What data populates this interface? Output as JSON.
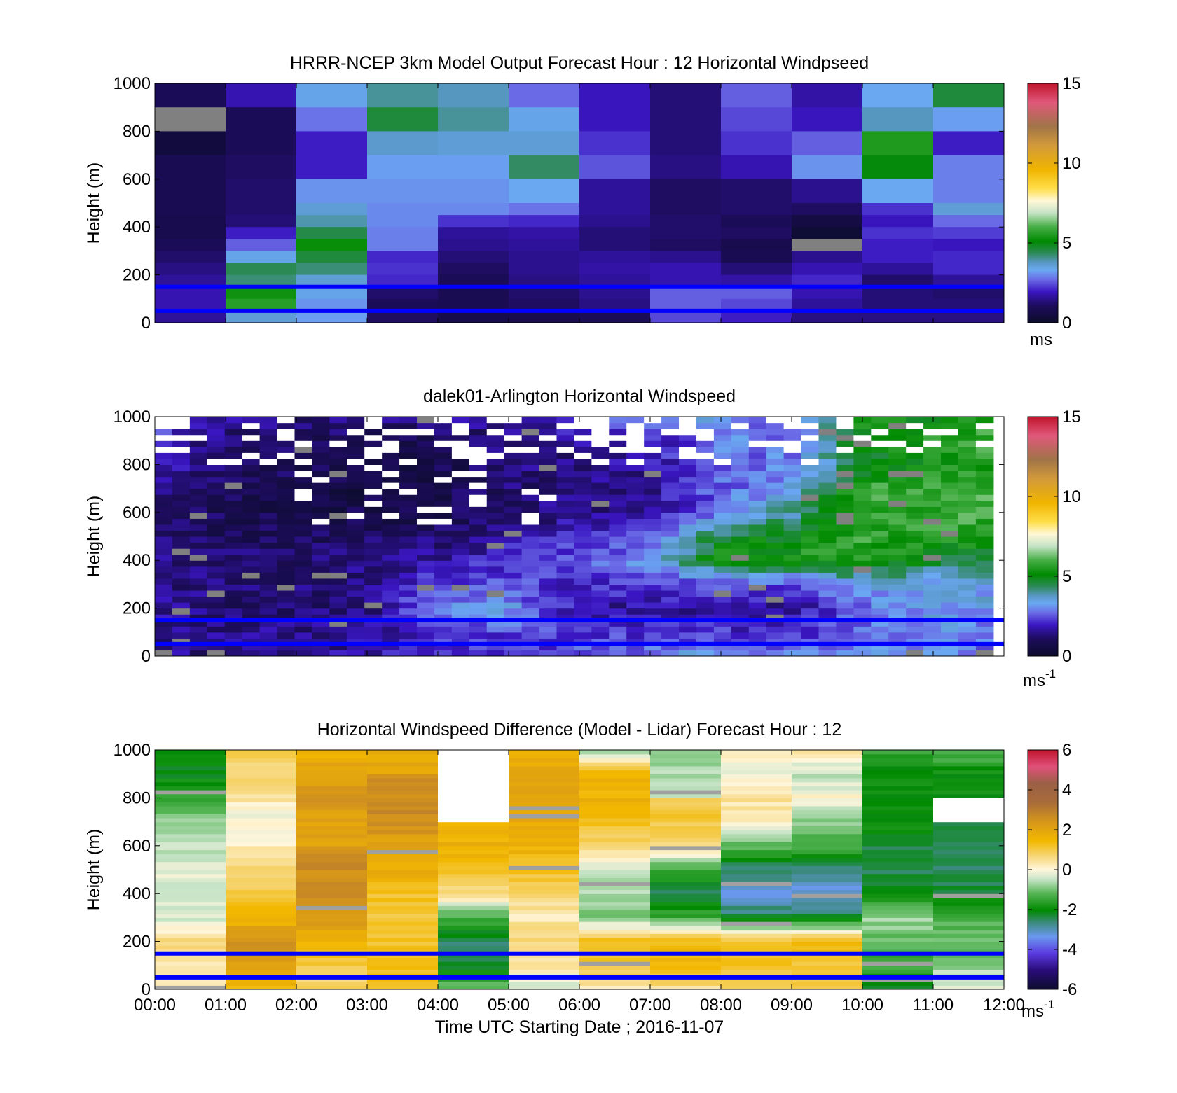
{
  "chart_data": [
    {
      "type": "heatmap",
      "title": "HRRR-NCEP 3km Model Output   Forecast Hour : 12 Horizontal Windpseed",
      "ylabel": "Height (m)",
      "xlabel": "",
      "ylim": [
        0,
        1000
      ],
      "yticks": [
        "0",
        "200",
        "400",
        "600",
        "800",
        "1000"
      ],
      "xlim_hours": [
        0,
        12
      ],
      "colorbar": {
        "min": 0,
        "max": 15,
        "ticks": [
          "0",
          "5",
          "10",
          "15"
        ],
        "unit": "ms",
        "unit_sup": ""
      },
      "reference_lines_m": [
        150,
        50
      ],
      "reference_line_color": "#0000ff",
      "rows_m": [
        1000,
        900,
        800,
        700,
        600,
        500,
        450,
        400,
        350,
        300,
        250,
        200,
        150,
        100,
        50,
        0
      ],
      "values": [
        [
          1.0,
          1.8,
          3.4,
          4.0,
          3.8,
          2.7,
          1.9,
          1.3,
          2.6,
          1.7,
          3.3,
          4.6
        ],
        [
          0.2,
          1.0,
          2.8,
          4.6,
          4.0,
          3.4,
          1.9,
          1.3,
          2.4,
          1.9,
          3.8,
          3.2
        ],
        [
          0.4,
          1.0,
          2.0,
          3.7,
          3.6,
          3.6,
          2.2,
          1.3,
          2.2,
          2.6,
          5.5,
          2.0
        ],
        [
          0.9,
          1.1,
          2.0,
          3.2,
          3.2,
          4.3,
          2.5,
          1.4,
          1.8,
          3.1,
          5.0,
          2.9
        ],
        [
          0.9,
          1.2,
          3.1,
          3.1,
          3.1,
          3.3,
          1.6,
          1.1,
          1.2,
          1.5,
          3.3,
          2.9
        ],
        [
          0.9,
          1.2,
          3.6,
          3.0,
          3.0,
          2.8,
          1.6,
          1.1,
          1.2,
          1.1,
          2.2,
          3.6
        ],
        [
          0.8,
          1.3,
          3.9,
          3.0,
          2.2,
          2.1,
          1.5,
          1.2,
          1.0,
          0.5,
          1.9,
          2.7
        ],
        [
          0.8,
          2.0,
          4.5,
          2.9,
          1.6,
          1.7,
          1.3,
          1.2,
          1.1,
          0.2,
          2.2,
          2.3
        ],
        [
          1.0,
          2.6,
          5.2,
          2.9,
          1.5,
          1.6,
          1.3,
          1.1,
          0.8,
          1.1,
          2.0,
          1.9
        ],
        [
          1.2,
          3.4,
          4.6,
          2.1,
          1.3,
          1.5,
          1.6,
          1.5,
          0.9,
          1.5,
          2.0,
          2.1
        ],
        [
          1.4,
          4.4,
          4.2,
          2.2,
          1.1,
          1.5,
          1.7,
          1.8,
          1.3,
          1.8,
          1.6,
          2.1
        ],
        [
          1.6,
          4.2,
          3.6,
          2.1,
          1.0,
          1.4,
          1.6,
          1.8,
          1.7,
          2.1,
          1.2,
          1.6
        ],
        [
          1.8,
          5.3,
          3.4,
          1.2,
          0.9,
          1.2,
          1.5,
          2.6,
          2.6,
          1.8,
          1.3,
          1.2
        ],
        [
          1.8,
          5.6,
          3.1,
          1.0,
          0.9,
          1.1,
          1.4,
          2.6,
          2.4,
          1.6,
          1.3,
          1.3
        ],
        [
          1.6,
          3.6,
          3.2,
          1.1,
          0.7,
          0.8,
          1.0,
          2.4,
          2.0,
          1.4,
          1.4,
          1.4
        ],
        [
          1.4,
          3.6,
          3.2,
          1.1,
          0.7,
          0.8,
          1.0,
          2.4,
          2.0,
          1.4,
          1.4,
          1.4
        ]
      ],
      "missing_cells": [
        [
          1,
          0
        ],
        [
          8,
          9
        ]
      ]
    },
    {
      "type": "heatmap",
      "title": "dalek01-Arlington  Horizontal Windspeed",
      "ylabel": "Height (m)",
      "xlabel": "",
      "ylim": [
        0,
        1000
      ],
      "yticks": [
        "0",
        "200",
        "400",
        "600",
        "800",
        "1000"
      ],
      "xlim_hours": [
        0,
        12
      ],
      "colorbar": {
        "min": 0,
        "max": 15,
        "ticks": [
          "0",
          "5",
          "10",
          "15"
        ],
        "unit": "ms",
        "unit_sup": "-1"
      },
      "reference_lines_m": [
        150,
        50
      ],
      "reference_line_color": "#0000ff",
      "rows_m": [
        0,
        100,
        200,
        300,
        400,
        500,
        600,
        700,
        800,
        900,
        1000
      ],
      "profile_hours": [
        0,
        1,
        2,
        3,
        4,
        5,
        6,
        7,
        8,
        9,
        10,
        11,
        12
      ],
      "profiles": [
        [
          1.5,
          1.6,
          1.6,
          1.5,
          1.4,
          1.3,
          1.1,
          1.3,
          1.8,
          2.2,
          3.0
        ],
        [
          1.4,
          1.5,
          1.2,
          1.2,
          1.2,
          1.0,
          0.9,
          0.9,
          1.3,
          1.2,
          1.6
        ],
        [
          1.5,
          1.5,
          1.2,
          1.2,
          1.2,
          1.0,
          0.8,
          0.8,
          0.9,
          1.0,
          1.3
        ],
        [
          1.7,
          1.6,
          1.3,
          1.5,
          1.4,
          1.1,
          0.7,
          0.6,
          0.6,
          0.8,
          1.4
        ],
        [
          1.9,
          2.3,
          2.9,
          2.4,
          1.6,
          1.2,
          0.8,
          0.7,
          0.7,
          0.9,
          1.4
        ],
        [
          2.0,
          2.4,
          3.2,
          2.6,
          2.2,
          1.7,
          1.2,
          1.2,
          1.4,
          1.3,
          1.8
        ],
        [
          2.6,
          2.2,
          1.7,
          2.0,
          2.6,
          2.0,
          1.5,
          1.3,
          1.4,
          1.6,
          2.2
        ],
        [
          3.0,
          2.1,
          1.6,
          2.3,
          3.2,
          2.5,
          1.6,
          1.5,
          1.7,
          1.9,
          2.8
        ],
        [
          3.3,
          2.2,
          1.7,
          2.4,
          5.4,
          4.6,
          3.0,
          2.6,
          2.6,
          2.9,
          3.6
        ],
        [
          2.8,
          2.0,
          1.5,
          2.2,
          5.4,
          5.1,
          4.0,
          3.3,
          3.0,
          2.6,
          2.4
        ],
        [
          3.0,
          2.7,
          2.8,
          3.3,
          5.7,
          5.7,
          5.5,
          5.8,
          4.7,
          5.0,
          5.2
        ],
        [
          3.1,
          3.2,
          3.2,
          3.2,
          4.7,
          5.6,
          5.9,
          5.7,
          5.3,
          5.5,
          5.2
        ],
        [
          2.6,
          2.6,
          3.4,
          3.4,
          4.3,
          5.5,
          6.0,
          5.9,
          5.6,
          6.0,
          5.6
        ]
      ]
    },
    {
      "type": "heatmap",
      "title": "Horizontal Windspeed Difference (Model - Lidar) Forecast Hour : 12",
      "ylabel": "Height (m)",
      "xlabel": "Time UTC  Starting Date ; 2016-11-07",
      "ylim": [
        0,
        1000
      ],
      "yticks": [
        "0",
        "200",
        "400",
        "600",
        "800",
        "1000"
      ],
      "xticks": [
        "00:00",
        "01:00",
        "02:00",
        "03:00",
        "04:00",
        "05:00",
        "06:00",
        "07:00",
        "08:00",
        "09:00",
        "10:00",
        "11:00",
        "12:00"
      ],
      "xlim_hours": [
        0,
        12
      ],
      "colorbar": {
        "min": -6,
        "max": 6,
        "ticks": [
          "-6",
          "-4",
          "-2",
          "0",
          "2",
          "4",
          "6"
        ],
        "unit": "ms",
        "unit_sup": "-1"
      },
      "reference_lines_m": [
        150,
        50
      ],
      "reference_line_color": "#0000ff",
      "rows_m": [
        0,
        100,
        200,
        300,
        400,
        500,
        600,
        700,
        800,
        900,
        1000
      ],
      "profiles": [
        [
          0.2,
          0.3,
          0.6,
          -0.4,
          -0.3,
          -0.3,
          -0.5,
          -0.8,
          -1.5,
          -2.1,
          -2.0
        ],
        [
          1.5,
          2.2,
          2.7,
          1.4,
          1.0,
          0.8,
          0.2,
          -0.1,
          0.3,
          0.8,
          null
        ],
        [
          0.7,
          0.9,
          1.7,
          2.2,
          2.5,
          2.6,
          null,
          2.0,
          2.4,
          2.1,
          1.6
        ],
        [
          1.2,
          1.3,
          1.1,
          1.1,
          1.2,
          1.7,
          2.0,
          2.6,
          2.6,
          null,
          1.9
        ],
        [
          -1.0,
          -2.3,
          -2.6,
          -1.4,
          0.4,
          1.3,
          1.6,
          null,
          null,
          null,
          null
        ],
        [
          -0.7,
          0.4,
          0.7,
          0.3,
          0.7,
          1.2,
          1.6,
          1.8,
          2.0,
          1.8,
          1.8
        ],
        [
          0.3,
          1.2,
          1.4,
          -0.9,
          -0.7,
          -0.4,
          0.6,
          1.3,
          1.6,
          1.5,
          -0.9
        ],
        [
          0.4,
          1.6,
          1.3,
          -1.4,
          -2.4,
          -1.5,
          0.7,
          1.0,
          null,
          -0.6,
          -1.1
        ],
        [
          1.0,
          1.1,
          1.3,
          -2.4,
          -3.3,
          -2.6,
          -1.2,
          0.2,
          0.4,
          -0.2,
          0.3
        ],
        [
          1.1,
          1.0,
          1.4,
          -2.3,
          -3.4,
          -2.6,
          -1.3,
          -0.9,
          0.0,
          -0.6,
          0.5
        ],
        [
          -2.3,
          -1.5,
          -1.2,
          -0.7,
          -2.0,
          -2.4,
          -2.4,
          -1.9,
          null,
          -2.0,
          -1.5
        ],
        [
          -0.2,
          -0.8,
          -1.2,
          -1.2,
          -2.3,
          -2.6,
          -2.5,
          null,
          null,
          -2.0,
          -1.2
        ]
      ]
    }
  ]
}
